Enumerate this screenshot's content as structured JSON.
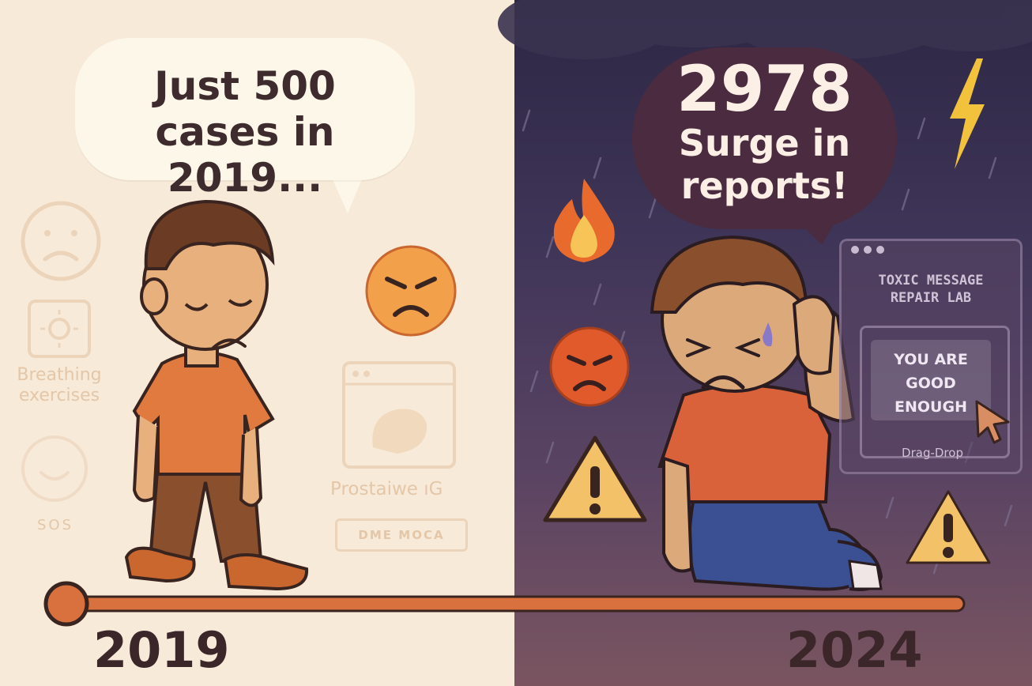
{
  "left_bubble": {
    "line1": "Just 500",
    "line2": "cases in 2019..."
  },
  "right_bubble": {
    "number": "2978",
    "line1": "Surge in",
    "line2": "reports!"
  },
  "faint_icons": {
    "breathing_line1": "Breathing",
    "breathing_line2": "exercises",
    "sos": "SOS",
    "app_label": "Prostaiwe ıG",
    "app_button": "DME MOCA"
  },
  "repair_lab": {
    "title_line1": "TOXIC MESSAGE",
    "title_line2": "REPAIR LAB",
    "message_line1": "YOU ARE",
    "message_line2": "GOOD",
    "message_line3": "ENOUGH",
    "hint": "Drag-Drop"
  },
  "timeline": {
    "start_year": "2019",
    "end_year": "2024"
  },
  "colors": {
    "left_bg": "#f8ead8",
    "right_bg_top": "#2d2744",
    "timeline": "#d9713f",
    "shirt": "#e07a3f",
    "warning": "#f3c268",
    "dark_text": "#3b2629"
  }
}
